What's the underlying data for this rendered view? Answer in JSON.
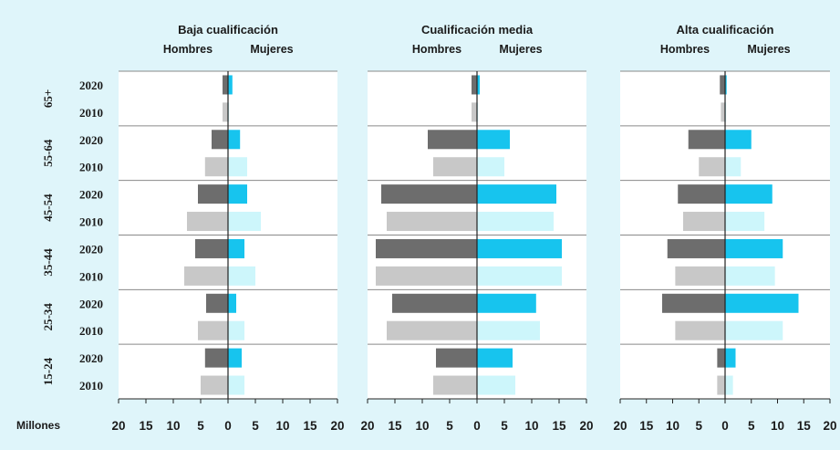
{
  "chart_data": {
    "type": "bar",
    "orientation": "horizontal",
    "layout": "population-pyramid",
    "x_unit_label": "Millones",
    "xlim": [
      -20,
      20
    ],
    "ticks": [
      "20",
      "15",
      "10",
      "5",
      "0",
      "5",
      "10",
      "15",
      "20"
    ],
    "tick_values": [
      -20,
      -15,
      -10,
      -5,
      0,
      5,
      10,
      15,
      20
    ],
    "age_groups": [
      "65+",
      "55-64",
      "45-54",
      "35-44",
      "25-34",
      "15-24"
    ],
    "years": [
      "2020",
      "2010"
    ],
    "side_labels": {
      "men": "Hombres",
      "women": "Mujeres"
    },
    "colors": {
      "men_2020": "#6d6d6d",
      "men_2010": "#c8c8c8",
      "women_2020": "#17c4ee",
      "women_2010": "#cdf6fb",
      "background": "#dff5fa",
      "plot": "#ffffff"
    },
    "panels": [
      {
        "title": "Baja cualificación",
        "rows": [
          {
            "age": "65+",
            "year": "2020",
            "men": 1.0,
            "women": 0.8
          },
          {
            "age": "65+",
            "year": "2010",
            "men": 1.0,
            "women": 0.2
          },
          {
            "age": "55-64",
            "year": "2020",
            "men": 3.0,
            "women": 2.2
          },
          {
            "age": "55-64",
            "year": "2010",
            "men": 4.2,
            "women": 3.5
          },
          {
            "age": "45-54",
            "year": "2020",
            "men": 5.5,
            "women": 3.5
          },
          {
            "age": "45-54",
            "year": "2010",
            "men": 7.5,
            "women": 6.0
          },
          {
            "age": "35-44",
            "year": "2020",
            "men": 6.0,
            "women": 3.0
          },
          {
            "age": "35-44",
            "year": "2010",
            "men": 8.0,
            "women": 5.0
          },
          {
            "age": "25-34",
            "year": "2020",
            "men": 4.0,
            "women": 1.5
          },
          {
            "age": "25-34",
            "year": "2010",
            "men": 5.5,
            "women": 3.0
          },
          {
            "age": "15-24",
            "year": "2020",
            "men": 4.2,
            "women": 2.5
          },
          {
            "age": "15-24",
            "year": "2010",
            "men": 5.0,
            "women": 3.0
          }
        ]
      },
      {
        "title": "Cualificación media",
        "rows": [
          {
            "age": "65+",
            "year": "2020",
            "men": 1.0,
            "women": 0.5
          },
          {
            "age": "65+",
            "year": "2010",
            "men": 1.0,
            "women": 0.2
          },
          {
            "age": "55-64",
            "year": "2020",
            "men": 9.0,
            "women": 6.0
          },
          {
            "age": "55-64",
            "year": "2010",
            "men": 8.0,
            "women": 5.0
          },
          {
            "age": "45-54",
            "year": "2020",
            "men": 17.5,
            "women": 14.5
          },
          {
            "age": "45-54",
            "year": "2010",
            "men": 16.5,
            "women": 14.0
          },
          {
            "age": "35-44",
            "year": "2020",
            "men": 18.5,
            "women": 15.5
          },
          {
            "age": "35-44",
            "year": "2010",
            "men": 18.5,
            "women": 15.5
          },
          {
            "age": "25-34",
            "year": "2020",
            "men": 15.5,
            "women": 10.8
          },
          {
            "age": "25-34",
            "year": "2010",
            "men": 16.5,
            "women": 11.5
          },
          {
            "age": "15-24",
            "year": "2020",
            "men": 7.5,
            "women": 6.5
          },
          {
            "age": "15-24",
            "year": "2010",
            "men": 8.0,
            "women": 7.0
          }
        ]
      },
      {
        "title": "Alta cualificación",
        "rows": [
          {
            "age": "65+",
            "year": "2020",
            "men": 1.0,
            "women": 0.3
          },
          {
            "age": "65+",
            "year": "2010",
            "men": 0.8,
            "women": 0.2
          },
          {
            "age": "55-64",
            "year": "2020",
            "men": 7.0,
            "women": 5.0
          },
          {
            "age": "55-64",
            "year": "2010",
            "men": 5.0,
            "women": 3.0
          },
          {
            "age": "45-54",
            "year": "2020",
            "men": 9.0,
            "women": 9.0
          },
          {
            "age": "45-54",
            "year": "2010",
            "men": 8.0,
            "women": 7.5
          },
          {
            "age": "35-44",
            "year": "2020",
            "men": 11.0,
            "women": 11.0
          },
          {
            "age": "35-44",
            "year": "2010",
            "men": 9.5,
            "women": 9.5
          },
          {
            "age": "25-34",
            "year": "2020",
            "men": 12.0,
            "women": 14.0
          },
          {
            "age": "25-34",
            "year": "2010",
            "men": 9.5,
            "women": 11.0
          },
          {
            "age": "15-24",
            "year": "2020",
            "men": 1.5,
            "women": 2.0
          },
          {
            "age": "15-24",
            "year": "2010",
            "men": 1.5,
            "women": 1.5
          }
        ]
      }
    ]
  }
}
